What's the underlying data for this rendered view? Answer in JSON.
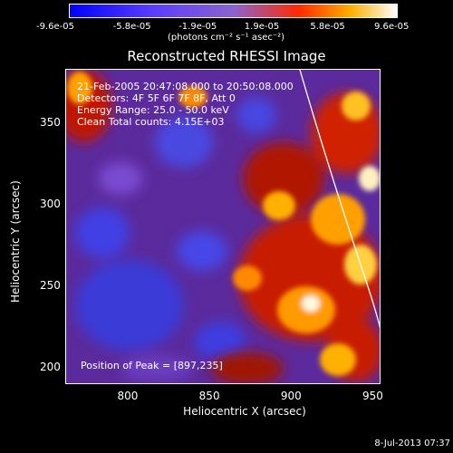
{
  "colorbar": {
    "ticks": [
      "-9.6e-05",
      "-5.8e-05",
      "-1.9e-05",
      "1.9e-05",
      "5.8e-05",
      "9.6e-05"
    ],
    "unit_label": "(photons cm⁻² s⁻¹ asec⁻²)"
  },
  "chart_data": {
    "type": "heatmap",
    "title": "Reconstructed RHESSI Image",
    "xlabel": "Heliocentric X (arcsec)",
    "ylabel": "Heliocentric Y (arcsec)",
    "xlim": [
      762,
      955
    ],
    "ylim": [
      190,
      383
    ],
    "x_ticks": [
      800,
      850,
      900,
      950
    ],
    "y_ticks": [
      200,
      250,
      300,
      350
    ],
    "color_range": [
      -9.6e-05,
      9.6e-05
    ],
    "colormap": [
      "#0000ff",
      "#8a63cf",
      "#ff2a00",
      "#ffb000",
      "#ffffff"
    ],
    "annotations": {
      "time": "21-Feb-2005 20:47:08.000 to 20:50:08.000",
      "detectors": "Detectors: 4F 5F 6F 7F 8F, Att 0",
      "energy": "Energy Range: 25.0 - 50.0 keV",
      "clean": "Clean    Total counts: 4.15E+03",
      "peak": "Position of Peak = [897,235]"
    },
    "limb_arc": true
  },
  "footer": {
    "date": "8-Jul-2013 07:37"
  }
}
